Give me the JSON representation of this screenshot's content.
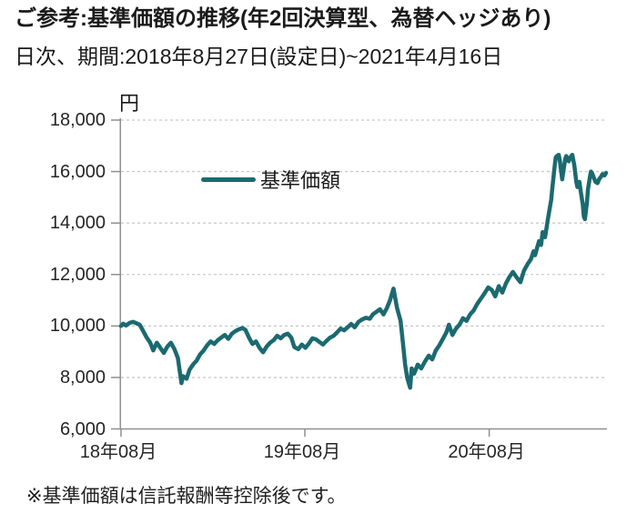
{
  "header": {
    "title": "ご参考:基準価額の推移(年2回決算型、為替ヘッジあり)",
    "subtitle": "日次、期間:2018年8月27日(設定日)~2021年4月16日"
  },
  "footer": {
    "note": "※基準価額は信託報酬等控除後です。"
  },
  "chart": {
    "legend_label": "基準価額",
    "y_unit": "円",
    "colors": {
      "line": "#1B6A70",
      "grid": "#CBCBCB",
      "axis": "#8F8F8F",
      "text": "#262626"
    }
  },
  "chart_data": {
    "type": "line",
    "title": "基準価額の推移(年2回決算型、為替ヘッジあり)",
    "xlabel": "",
    "ylabel": "円",
    "ylim": [
      6000,
      18000
    ],
    "y_ticks": [
      6000,
      8000,
      10000,
      12000,
      14000,
      16000,
      18000
    ],
    "x_range": [
      "2018-08-27",
      "2021-04-16"
    ],
    "x_tick_dates": [
      "2018-08-27",
      "2019-08-27",
      "2020-08-27"
    ],
    "x_tick_labels": [
      "18年08月",
      "19年08月",
      "20年08月"
    ],
    "grid": "horizontal-dashed",
    "legend_position": "upper-left-inside",
    "series": [
      {
        "name": "基準価額",
        "points": [
          [
            "2018-08-27",
            10000
          ],
          [
            "2018-08-31",
            10090
          ],
          [
            "2018-09-06",
            10020
          ],
          [
            "2018-09-13",
            10120
          ],
          [
            "2018-09-20",
            10160
          ],
          [
            "2018-09-27",
            10100
          ],
          [
            "2018-10-03",
            10050
          ],
          [
            "2018-10-10",
            9800
          ],
          [
            "2018-10-17",
            9550
          ],
          [
            "2018-10-24",
            9350
          ],
          [
            "2018-10-30",
            9050
          ],
          [
            "2018-11-06",
            9350
          ],
          [
            "2018-11-13",
            9150
          ],
          [
            "2018-11-20",
            8950
          ],
          [
            "2018-11-27",
            9200
          ],
          [
            "2018-12-04",
            9350
          ],
          [
            "2018-12-11",
            9100
          ],
          [
            "2018-12-18",
            8750
          ],
          [
            "2018-12-25",
            7780
          ],
          [
            "2018-12-28",
            8050
          ],
          [
            "2019-01-04",
            7950
          ],
          [
            "2019-01-10",
            8300
          ],
          [
            "2019-01-17",
            8500
          ],
          [
            "2019-01-24",
            8650
          ],
          [
            "2019-01-31",
            8900
          ],
          [
            "2019-02-07",
            9050
          ],
          [
            "2019-02-14",
            9250
          ],
          [
            "2019-02-21",
            9400
          ],
          [
            "2019-02-28",
            9300
          ],
          [
            "2019-03-07",
            9450
          ],
          [
            "2019-03-14",
            9550
          ],
          [
            "2019-03-21",
            9650
          ],
          [
            "2019-03-28",
            9500
          ],
          [
            "2019-04-04",
            9700
          ],
          [
            "2019-04-11",
            9800
          ],
          [
            "2019-04-18",
            9870
          ],
          [
            "2019-04-25",
            9920
          ],
          [
            "2019-05-01",
            9850
          ],
          [
            "2019-05-08",
            9550
          ],
          [
            "2019-05-15",
            9300
          ],
          [
            "2019-05-22",
            9400
          ],
          [
            "2019-05-29",
            9150
          ],
          [
            "2019-06-05",
            8980
          ],
          [
            "2019-06-12",
            9200
          ],
          [
            "2019-06-19",
            9350
          ],
          [
            "2019-06-26",
            9450
          ],
          [
            "2019-07-03",
            9620
          ],
          [
            "2019-07-10",
            9520
          ],
          [
            "2019-07-17",
            9650
          ],
          [
            "2019-07-24",
            9700
          ],
          [
            "2019-07-31",
            9550
          ],
          [
            "2019-08-06",
            9180
          ],
          [
            "2019-08-14",
            9100
          ],
          [
            "2019-08-21",
            9280
          ],
          [
            "2019-08-28",
            9150
          ],
          [
            "2019-09-04",
            9320
          ],
          [
            "2019-09-11",
            9520
          ],
          [
            "2019-09-18",
            9480
          ],
          [
            "2019-09-25",
            9380
          ],
          [
            "2019-10-02",
            9280
          ],
          [
            "2019-10-09",
            9420
          ],
          [
            "2019-10-16",
            9550
          ],
          [
            "2019-10-23",
            9620
          ],
          [
            "2019-10-30",
            9750
          ],
          [
            "2019-11-06",
            9900
          ],
          [
            "2019-11-13",
            9830
          ],
          [
            "2019-11-20",
            9950
          ],
          [
            "2019-11-27",
            10080
          ],
          [
            "2019-12-04",
            9950
          ],
          [
            "2019-12-11",
            10150
          ],
          [
            "2019-12-18",
            10250
          ],
          [
            "2019-12-26",
            10320
          ],
          [
            "2020-01-03",
            10280
          ],
          [
            "2020-01-09",
            10450
          ],
          [
            "2020-01-16",
            10550
          ],
          [
            "2020-01-23",
            10650
          ],
          [
            "2020-01-30",
            10450
          ],
          [
            "2020-02-06",
            10700
          ],
          [
            "2020-02-12",
            11000
          ],
          [
            "2020-02-19",
            11450
          ],
          [
            "2020-02-26",
            10700
          ],
          [
            "2020-03-04",
            10200
          ],
          [
            "2020-03-09",
            9300
          ],
          [
            "2020-03-13",
            8500
          ],
          [
            "2020-03-17",
            8000
          ],
          [
            "2020-03-23",
            7600
          ],
          [
            "2020-03-26",
            8350
          ],
          [
            "2020-03-31",
            8150
          ],
          [
            "2020-04-07",
            8500
          ],
          [
            "2020-04-14",
            8350
          ],
          [
            "2020-04-21",
            8600
          ],
          [
            "2020-04-29",
            8850
          ],
          [
            "2020-05-06",
            8700
          ],
          [
            "2020-05-13",
            9050
          ],
          [
            "2020-05-20",
            9250
          ],
          [
            "2020-05-27",
            9500
          ],
          [
            "2020-06-03",
            9750
          ],
          [
            "2020-06-08",
            10050
          ],
          [
            "2020-06-15",
            9650
          ],
          [
            "2020-06-22",
            9900
          ],
          [
            "2020-06-29",
            10050
          ],
          [
            "2020-07-06",
            10300
          ],
          [
            "2020-07-13",
            10200
          ],
          [
            "2020-07-20",
            10450
          ],
          [
            "2020-07-27",
            10600
          ],
          [
            "2020-08-03",
            10850
          ],
          [
            "2020-08-10",
            11050
          ],
          [
            "2020-08-17",
            11250
          ],
          [
            "2020-08-25",
            11500
          ],
          [
            "2020-09-01",
            11400
          ],
          [
            "2020-09-08",
            11150
          ],
          [
            "2020-09-15",
            11550
          ],
          [
            "2020-09-22",
            11300
          ],
          [
            "2020-09-29",
            11650
          ],
          [
            "2020-10-06",
            11900
          ],
          [
            "2020-10-13",
            12100
          ],
          [
            "2020-10-20",
            11900
          ],
          [
            "2020-10-28",
            11700
          ],
          [
            "2020-11-04",
            12150
          ],
          [
            "2020-11-11",
            12400
          ],
          [
            "2020-11-18",
            12600
          ],
          [
            "2020-11-23",
            12900
          ],
          [
            "2020-11-26",
            12750
          ],
          [
            "2020-12-01",
            13100
          ],
          [
            "2020-12-04",
            13300
          ],
          [
            "2020-12-08",
            13150
          ],
          [
            "2020-12-11",
            13650
          ],
          [
            "2020-12-16",
            13450
          ],
          [
            "2020-12-22",
            14200
          ],
          [
            "2020-12-28",
            14900
          ],
          [
            "2020-12-30",
            15300
          ],
          [
            "2021-01-04",
            16200
          ],
          [
            "2021-01-06",
            16550
          ],
          [
            "2021-01-08",
            16600
          ],
          [
            "2021-01-12",
            16650
          ],
          [
            "2021-01-14",
            16450
          ],
          [
            "2021-01-19",
            15700
          ],
          [
            "2021-01-21",
            16000
          ],
          [
            "2021-01-25",
            16500
          ],
          [
            "2021-01-27",
            16600
          ],
          [
            "2021-02-01",
            16400
          ],
          [
            "2021-02-04",
            16550
          ],
          [
            "2021-02-08",
            16650
          ],
          [
            "2021-02-12",
            16250
          ],
          [
            "2021-02-16",
            15600
          ],
          [
            "2021-02-18",
            15400
          ],
          [
            "2021-02-22",
            15600
          ],
          [
            "2021-02-25",
            15200
          ],
          [
            "2021-03-01",
            14700
          ],
          [
            "2021-03-03",
            14250
          ],
          [
            "2021-03-05",
            14150
          ],
          [
            "2021-03-09",
            14800
          ],
          [
            "2021-03-11",
            15300
          ],
          [
            "2021-03-15",
            15800
          ],
          [
            "2021-03-17",
            16000
          ],
          [
            "2021-03-19",
            15950
          ],
          [
            "2021-03-23",
            15750
          ],
          [
            "2021-03-26",
            15600
          ],
          [
            "2021-03-30",
            15550
          ],
          [
            "2021-04-02",
            15700
          ],
          [
            "2021-04-06",
            15800
          ],
          [
            "2021-04-09",
            15900
          ],
          [
            "2021-04-13",
            15850
          ],
          [
            "2021-04-16",
            15950
          ]
        ]
      }
    ]
  }
}
